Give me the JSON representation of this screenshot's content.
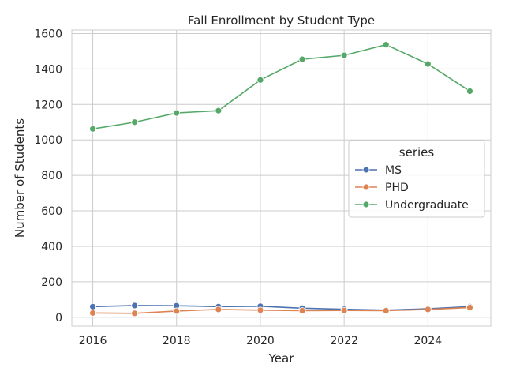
{
  "chart_data": {
    "type": "line",
    "title": "Fall Enrollment by Student Type",
    "xlabel": "Year",
    "ylabel": "Number of Students",
    "xlim": [
      2015.5,
      2025.5
    ],
    "ylim": [
      -50,
      1620
    ],
    "xticks": [
      2016,
      2018,
      2020,
      2022,
      2024
    ],
    "yticks": [
      0,
      200,
      400,
      600,
      800,
      1000,
      1200,
      1400,
      1600
    ],
    "grid": true,
    "legend": {
      "title": "series",
      "placement": "center-right"
    },
    "x": [
      2016,
      2017,
      2018,
      2019,
      2020,
      2021,
      2022,
      2023,
      2024,
      2025
    ],
    "series": [
      {
        "name": "MS",
        "color": "#4c72b0",
        "values": [
          60,
          66,
          65,
          60,
          62,
          51,
          45,
          40,
          48,
          60
        ]
      },
      {
        "name": "PHD",
        "color": "#dd8452",
        "values": [
          24,
          22,
          35,
          44,
          40,
          37,
          38,
          37,
          44,
          55
        ]
      },
      {
        "name": "Undergraduate",
        "color": "#55a868",
        "values": [
          1062,
          1100,
          1152,
          1165,
          1338,
          1455,
          1477,
          1537,
          1428,
          1275
        ]
      }
    ]
  }
}
